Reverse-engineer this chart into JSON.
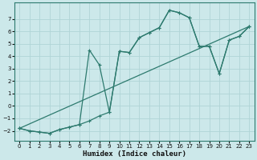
{
  "background_color": "#cce8ea",
  "grid_color": "#b0d4d6",
  "line_color": "#2d7a6e",
  "xlabel": "Humidex (Indice chaleur)",
  "xlim": [
    -0.5,
    23.5
  ],
  "ylim": [
    -2.8,
    8.3
  ],
  "xticks": [
    0,
    1,
    2,
    3,
    4,
    5,
    6,
    7,
    8,
    9,
    10,
    11,
    12,
    13,
    14,
    15,
    16,
    17,
    18,
    19,
    20,
    21,
    22,
    23
  ],
  "yticks": [
    -2,
    -1,
    0,
    1,
    2,
    3,
    4,
    5,
    6,
    7
  ],
  "line1_x": [
    0,
    1,
    2,
    3,
    4,
    5,
    6,
    7,
    8,
    9,
    10,
    11,
    12,
    13,
    14,
    15,
    16,
    17,
    18,
    19,
    20,
    21,
    22,
    23
  ],
  "line1_y": [
    -1.8,
    -2.0,
    -2.1,
    -2.2,
    -1.9,
    -1.7,
    -1.5,
    4.5,
    3.3,
    -0.5,
    4.4,
    4.3,
    5.5,
    5.9,
    6.3,
    7.7,
    7.5,
    7.1,
    4.8,
    4.8,
    2.6,
    5.3,
    5.6,
    6.4
  ],
  "line2_x": [
    0,
    1,
    2,
    3,
    4,
    5,
    6,
    7,
    8,
    9,
    10,
    11,
    12,
    13,
    14,
    15,
    16,
    17,
    18,
    19,
    20,
    21,
    22,
    23
  ],
  "line2_y": [
    -1.8,
    -2.0,
    -2.1,
    -2.2,
    -1.9,
    -1.7,
    -1.5,
    -1.2,
    -0.8,
    -0.5,
    4.4,
    4.3,
    5.5,
    5.9,
    6.3,
    7.7,
    7.5,
    7.1,
    4.8,
    4.8,
    2.6,
    5.3,
    5.6,
    6.4
  ],
  "line3_x": [
    0,
    23
  ],
  "line3_y": [
    -1.8,
    6.4
  ]
}
